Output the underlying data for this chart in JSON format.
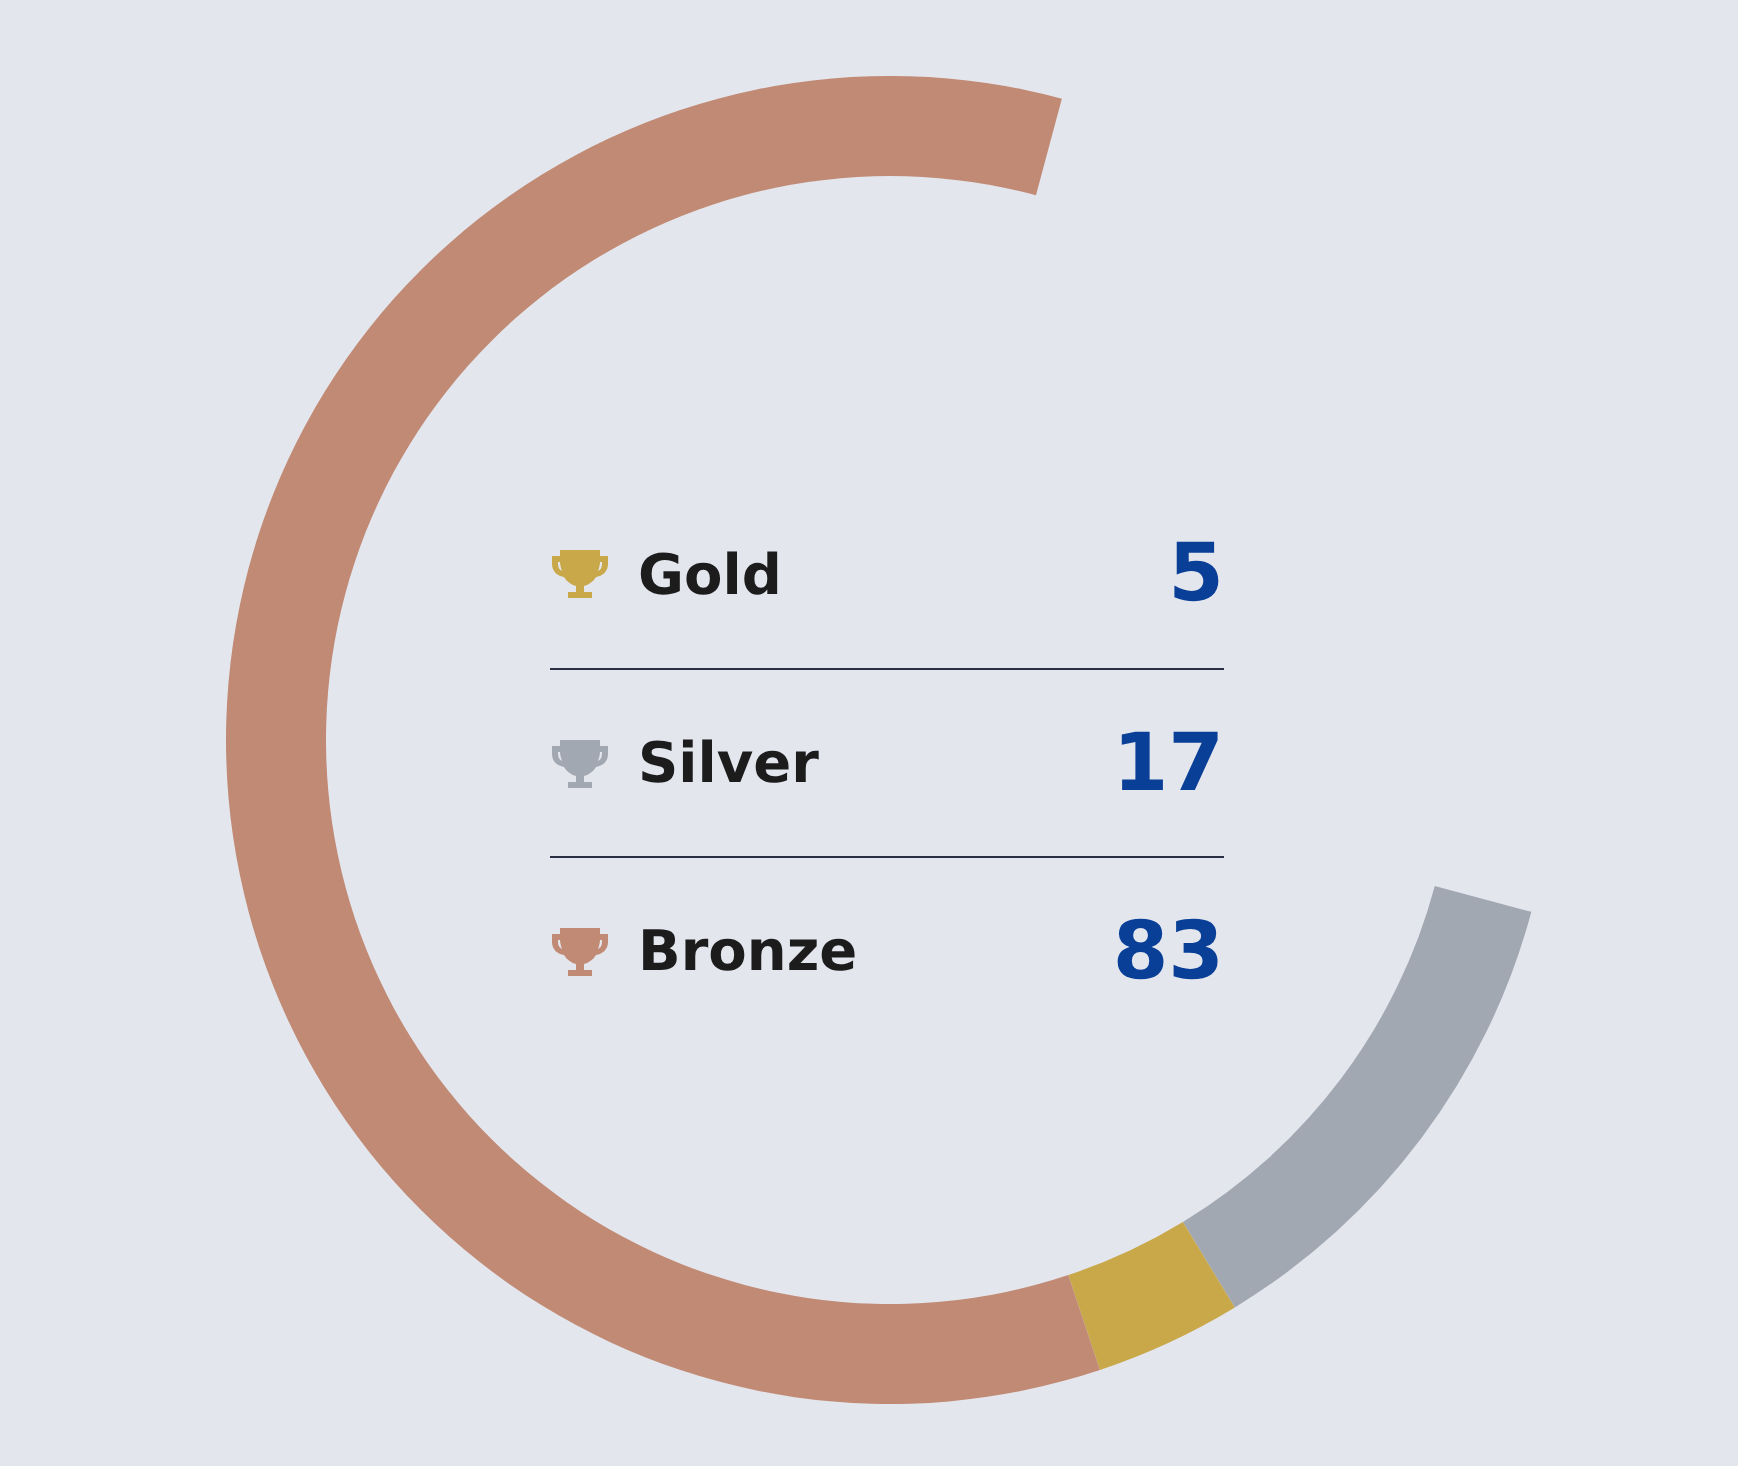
{
  "chart_data": {
    "type": "donut",
    "categories": [
      "Silver",
      "Gold",
      "Bronze"
    ],
    "values": [
      17,
      5,
      83
    ],
    "colors": [
      "#a2a8b2",
      "#c9a84a",
      "#c18a74"
    ],
    "data_labels": true,
    "legend": "center"
  }
}
